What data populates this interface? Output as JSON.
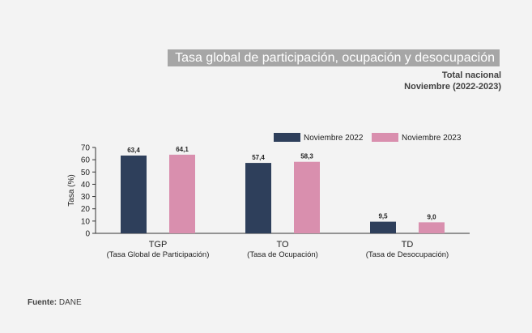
{
  "header": {
    "title": "Tasa global de participación, ocupación y desocupación",
    "subtitle_line1": "Total nacional",
    "subtitle_line2": "Noviembre (2022-2023)"
  },
  "footer": {
    "source_label": "Fuente:",
    "source_value": "DANE"
  },
  "chart_data": {
    "type": "bar",
    "categories": [
      [
        "TGP",
        "(Tasa Global de Participación)"
      ],
      [
        "TO",
        "(Tasa de Ocupación)"
      ],
      [
        "TD",
        "(Tasa de Desocupación)"
      ]
    ],
    "series": [
      {
        "name": "Noviembre 2022",
        "color": "#2e3f5b",
        "values": [
          63.4,
          57.4,
          9.5
        ],
        "labels": [
          "63,4",
          "57,4",
          "9,5"
        ]
      },
      {
        "name": "Noviembre 2023",
        "color": "#d98fae",
        "values": [
          64.1,
          58.3,
          9.0
        ],
        "labels": [
          "64,1",
          "58,3",
          "9,0"
        ]
      }
    ],
    "ylabel": "Tasa (%)",
    "xlabel": "",
    "ylim": [
      0,
      70
    ],
    "yticks": [
      0,
      10,
      20,
      30,
      40,
      50,
      60,
      70
    ],
    "grid": false,
    "legend_position": "top-right"
  }
}
